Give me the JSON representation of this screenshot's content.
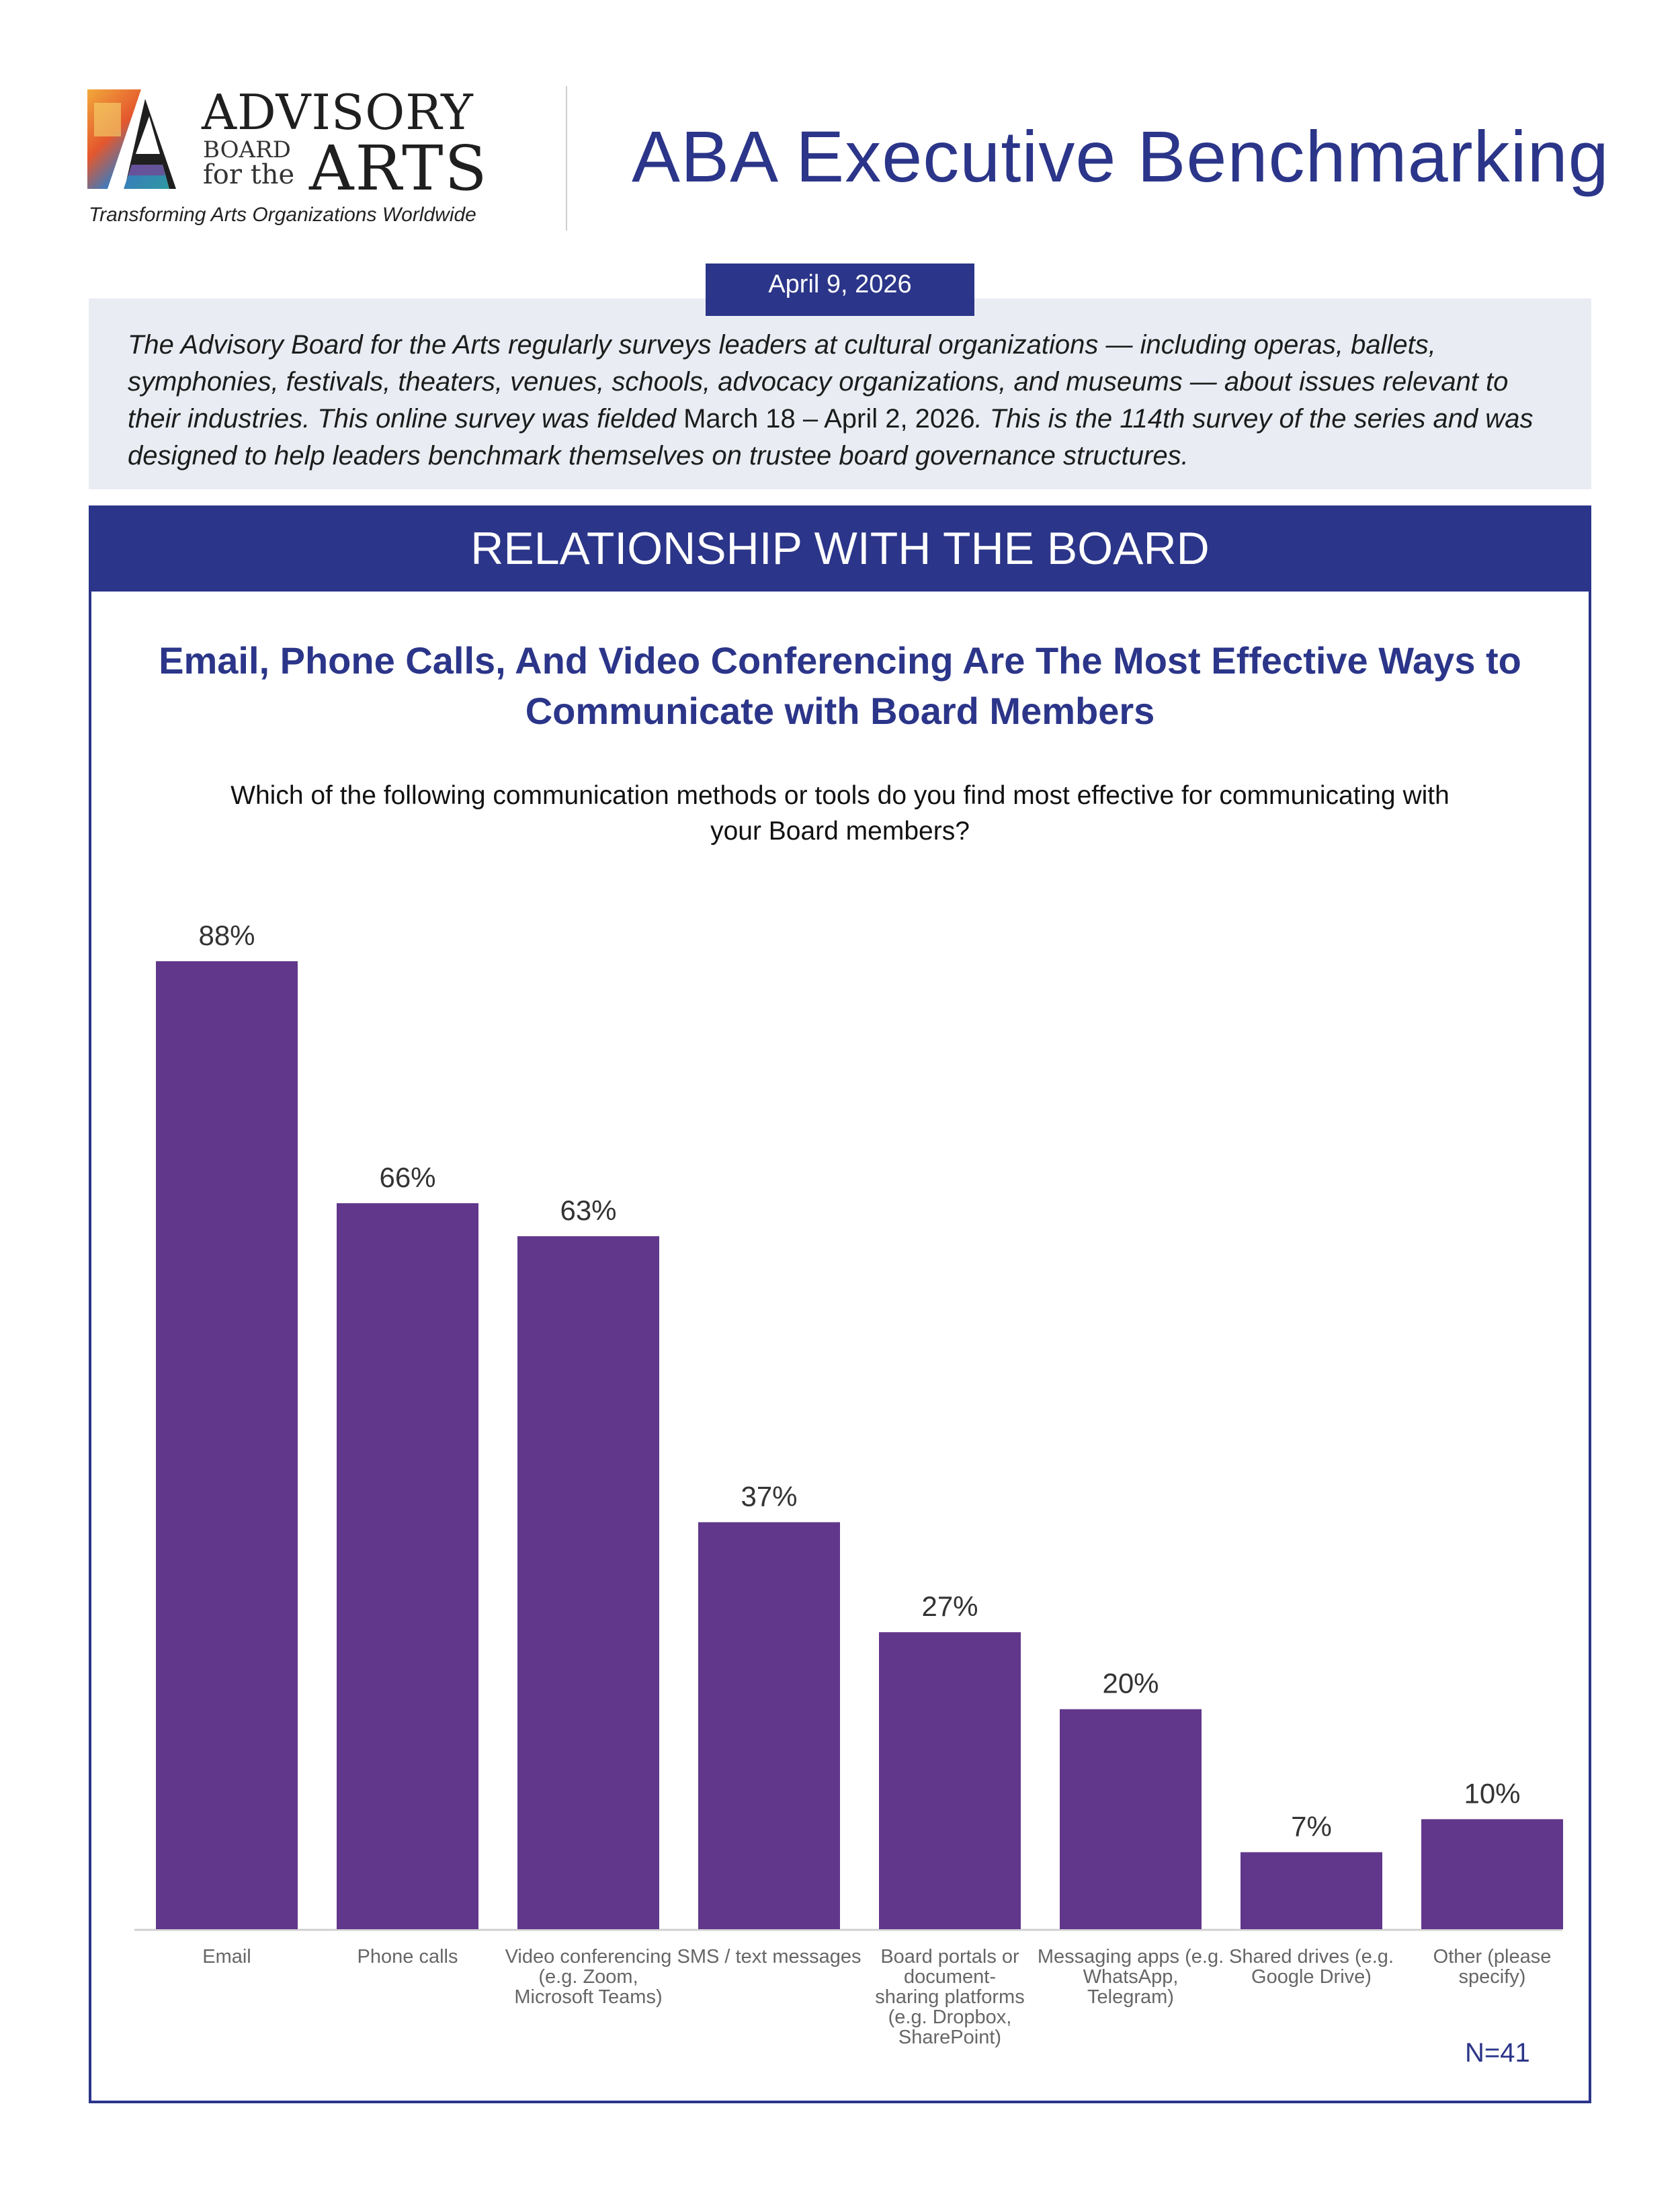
{
  "header": {
    "logo_line1": "ADVISORY",
    "logo_line2": "BOARD",
    "logo_line3": "for the",
    "logo_line4": "ARTS",
    "logo_tagline": "Transforming Arts Organizations Worldwide",
    "title": "ABA Executive Benchmarking"
  },
  "date": "April 9, 2026",
  "intro": {
    "part1": "The Advisory Board for the Arts regularly surveys leaders at cultural organizations — including operas, ballets, symphonies, festivals, theaters, venues, schools, advocacy organizations, and museums — about issues relevant to their industries. This online survey was fielded ",
    "dates": "March 18 – April 2, 2026",
    "part2": ". This is the 114th survey of the series and was designed to help leaders benchmark themselves on trustee board governance structures."
  },
  "section": {
    "title": "RELATIONSHIP WITH THE BOARD",
    "headline": "Email, Phone Calls, And Video Conferencing Are The Most Effective Ways to Communicate with Board Members",
    "question": "Which of the following communication methods or tools do you find most effective for communicating with your Board members?",
    "sample_size": "N=41"
  },
  "colors": {
    "brand_blue": "#2b3589",
    "bar_purple": "#61378b",
    "intro_bg": "#e9edf3"
  },
  "chart_data": {
    "type": "bar",
    "categories": [
      "Email",
      "Phone calls",
      "Video conferencing (e.g. Zoom, Microsoft Teams)",
      "SMS / text messages",
      "Board portals or document-sharing platforms (e.g. Dropbox, SharePoint)",
      "Messaging apps (e.g. WhatsApp, Telegram)",
      "Shared drives (e.g. Google Drive)",
      "Other (please specify)"
    ],
    "category_lines": [
      [
        "Email"
      ],
      [
        "Phone calls"
      ],
      [
        "Video conferencing",
        "(e.g. Zoom,",
        "Microsoft Teams)"
      ],
      [
        "SMS / text messages"
      ],
      [
        "Board portals or",
        "document-",
        "sharing platforms",
        "(e.g. Dropbox,",
        "SharePoint)"
      ],
      [
        "Messaging apps (e.g.",
        "WhatsApp,",
        "Telegram)"
      ],
      [
        "Shared drives (e.g.",
        "Google Drive)"
      ],
      [
        "Other (please",
        "specify)"
      ]
    ],
    "values": [
      88,
      66,
      63,
      37,
      27,
      20,
      7,
      10
    ],
    "labels": [
      "88%",
      "66%",
      "63%",
      "37%",
      "27%",
      "20%",
      "7%",
      "10%"
    ],
    "unit": "%",
    "ylim": [
      0,
      88
    ],
    "grid": false,
    "legend": "none"
  }
}
